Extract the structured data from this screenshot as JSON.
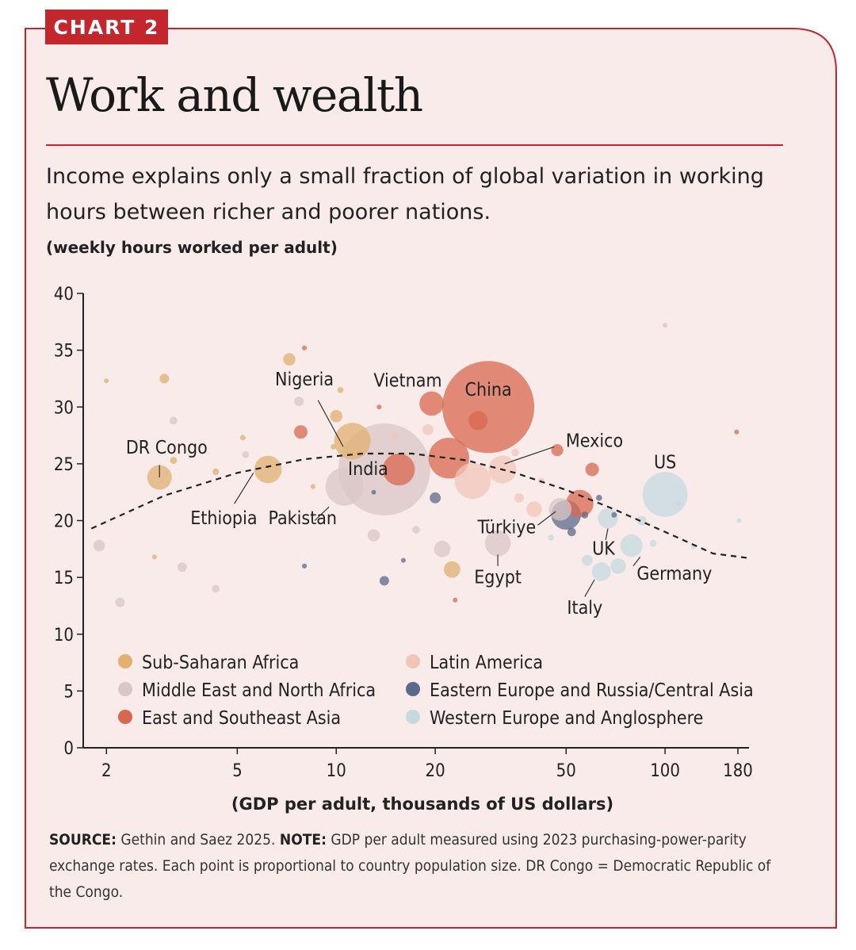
{
  "tag": "CHART 2",
  "title": "Work and wealth",
  "subtitle": "Income explains only a small fraction of global variation in working hours between richer and poorer nations.",
  "unit_label": "(weekly hours worked per adult)",
  "footnote": {
    "source_label": "SOURCE:",
    "source_text": " Gethin and Saez 2025. ",
    "note_label": "NOTE:",
    "note_text": " GDP per adult measured using 2023 purchasing-power-parity exchange rates. Each point is proportional to country population size. DR Congo = Democratic Republic of the Congo."
  },
  "colors": {
    "brand_red": "#c4262e",
    "panel_bg": "#f8ebea",
    "Sub-Saharan Africa": "#e2b06f",
    "Middle East and North Africa": "#d9c7c5",
    "East and Southeast Asia": "#d9674f",
    "Latin America": "#f1c6b8",
    "Eastern Europe and Russia/Central Asia": "#5c6a8a",
    "Western Europe and Anglosphere": "#c6d9df"
  },
  "chart_data": {
    "type": "scatter",
    "xlabel": "(GDP per adult, thousands of US dollars)",
    "ylabel": "(weekly hours worked per adult)",
    "x_scale": "log",
    "xlim": [
      1.7,
      180
    ],
    "ylim": [
      0,
      40
    ],
    "x_ticks": [
      2,
      5,
      10,
      20,
      50,
      100,
      180
    ],
    "y_ticks": [
      0,
      5,
      10,
      15,
      20,
      25,
      30,
      35,
      40
    ],
    "legend": [
      "Sub-Saharan Africa",
      "Middle East and North Africa",
      "East and Southeast Asia",
      "Latin America",
      "Eastern Europe and Russia/Central Asia",
      "Western Europe and Anglosphere"
    ],
    "legend_placement": "bottom",
    "trend_line": {
      "style": "dashed",
      "x": [
        1.8,
        3,
        5,
        8,
        12,
        17,
        25,
        35,
        50,
        70,
        100,
        140,
        180
      ],
      "y": [
        19.3,
        22.2,
        24.2,
        25.4,
        25.9,
        25.9,
        25.3,
        24.2,
        22.7,
        21.0,
        19.0,
        17.1,
        16.7
      ]
    },
    "points": [
      {
        "x": 29,
        "y": 30.0,
        "region": "East and Southeast Asia",
        "pop": 1400,
        "label": "China"
      },
      {
        "x": 14,
        "y": 24.5,
        "region": "Middle East and North Africa",
        "pop": 1400,
        "label": "India"
      },
      {
        "x": 19.5,
        "y": 30.3,
        "region": "East and Southeast Asia",
        "pop": 98,
        "label": "Vietnam"
      },
      {
        "x": 11.2,
        "y": 27.0,
        "region": "Sub-Saharan Africa",
        "pop": 220,
        "label": "Nigeria"
      },
      {
        "x": 6.2,
        "y": 24.5,
        "region": "Sub-Saharan Africa",
        "pop": 125,
        "label": "Ethiopia"
      },
      {
        "x": 2.9,
        "y": 23.8,
        "region": "Sub-Saharan Africa",
        "pop": 100,
        "label": "DR Congo"
      },
      {
        "x": 10.6,
        "y": 23.0,
        "region": "Middle East and North Africa",
        "pop": 240,
        "label": "Pakistan"
      },
      {
        "x": 32,
        "y": 24.5,
        "region": "Latin America",
        "pop": 128,
        "label": "Mexico"
      },
      {
        "x": 40,
        "y": 21.0,
        "region": "Latin America",
        "pop": 40
      },
      {
        "x": 48,
        "y": 21.0,
        "region": "Middle East and North Africa",
        "pop": 85,
        "label": "Türkiye"
      },
      {
        "x": 31,
        "y": 18.0,
        "region": "Middle East and North Africa",
        "pop": 110,
        "label": "Egypt"
      },
      {
        "x": 100,
        "y": 22.3,
        "region": "Western Europe and Anglosphere",
        "pop": 335,
        "label": "US"
      },
      {
        "x": 67,
        "y": 20.2,
        "region": "Western Europe and Anglosphere",
        "pop": 67,
        "label": "UK"
      },
      {
        "x": 79,
        "y": 17.8,
        "region": "Western Europe and Anglosphere",
        "pop": 84,
        "label": "Germany"
      },
      {
        "x": 64,
        "y": 15.5,
        "region": "Western Europe and Anglosphere",
        "pop": 59,
        "label": "Italy"
      },
      {
        "x": 22,
        "y": 25.5,
        "region": "East and Southeast Asia",
        "pop": 275
      },
      {
        "x": 15.5,
        "y": 24.5,
        "region": "East and Southeast Asia",
        "pop": 170
      },
      {
        "x": 27,
        "y": 28.8,
        "region": "East and Southeast Asia",
        "pop": 60
      },
      {
        "x": 26,
        "y": 23.5,
        "region": "Latin America",
        "pop": 215
      },
      {
        "x": 55,
        "y": 21.5,
        "region": "East and Southeast Asia",
        "pop": 125
      },
      {
        "x": 50,
        "y": 20.5,
        "region": "Eastern Europe and Russia/Central Asia",
        "pop": 145
      },
      {
        "x": 60,
        "y": 24.5,
        "region": "East and Southeast Asia",
        "pop": 30
      },
      {
        "x": 47,
        "y": 26.2,
        "region": "East and Southeast Asia",
        "pop": 24
      },
      {
        "x": 7.8,
        "y": 27.8,
        "region": "East and Southeast Asia",
        "pop": 30
      },
      {
        "x": 20,
        "y": 22.0,
        "region": "Eastern Europe and Russia/Central Asia",
        "pop": 20
      },
      {
        "x": 14,
        "y": 14.7,
        "region": "Eastern Europe and Russia/Central Asia",
        "pop": 15
      },
      {
        "x": 21,
        "y": 17.5,
        "region": "Middle East and North Africa",
        "pop": 45
      },
      {
        "x": 22.5,
        "y": 15.7,
        "region": "Sub-Saharan Africa",
        "pop": 45
      },
      {
        "x": 7.2,
        "y": 34.2,
        "region": "Sub-Saharan Africa",
        "pop": 25
      },
      {
        "x": 10,
        "y": 29.2,
        "region": "Sub-Saharan Africa",
        "pop": 25
      },
      {
        "x": 3.0,
        "y": 32.5,
        "region": "Sub-Saharan Africa",
        "pop": 15
      },
      {
        "x": 7.7,
        "y": 30.5,
        "region": "Middle East and North Africa",
        "pop": 15
      },
      {
        "x": 1.9,
        "y": 17.8,
        "region": "Middle East and North Africa",
        "pop": 22
      },
      {
        "x": 3.4,
        "y": 15.9,
        "region": "Middle East and North Africa",
        "pop": 15
      },
      {
        "x": 2.2,
        "y": 12.8,
        "region": "Middle East and North Africa",
        "pop": 15
      },
      {
        "x": 4.3,
        "y": 14.0,
        "region": "Middle East and North Africa",
        "pop": 10
      },
      {
        "x": 13,
        "y": 18.7,
        "region": "Middle East and North Africa",
        "pop": 25
      },
      {
        "x": 17.5,
        "y": 19.2,
        "region": "Middle East and North Africa",
        "pop": 10
      },
      {
        "x": 3.2,
        "y": 28.8,
        "region": "Middle East and North Africa",
        "pop": 10
      },
      {
        "x": 5.3,
        "y": 25.8,
        "region": "Middle East and North Africa",
        "pop": 8
      },
      {
        "x": 72,
        "y": 16.0,
        "region": "Western Europe and Anglosphere",
        "pop": 40
      },
      {
        "x": 58,
        "y": 16.5,
        "region": "Western Europe and Anglosphere",
        "pop": 20
      },
      {
        "x": 85,
        "y": 20.0,
        "region": "Western Europe and Anglosphere",
        "pop": 15
      },
      {
        "x": 92,
        "y": 18.0,
        "region": "Western Europe and Anglosphere",
        "pop": 8
      },
      {
        "x": 110,
        "y": 21.5,
        "region": "Western Europe and Anglosphere",
        "pop": 5
      },
      {
        "x": 45,
        "y": 18.5,
        "region": "Western Europe and Anglosphere",
        "pop": 6
      },
      {
        "x": 52,
        "y": 19.0,
        "region": "Eastern Europe and Russia/Central Asia",
        "pop": 12
      },
      {
        "x": 57,
        "y": 20.5,
        "region": "Eastern Europe and Russia/Central Asia",
        "pop": 8
      },
      {
        "x": 63,
        "y": 22.0,
        "region": "Eastern Europe and Russia/Central Asia",
        "pop": 6
      },
      {
        "x": 70,
        "y": 20.5,
        "region": "Eastern Europe and Russia/Central Asia",
        "pop": 5
      },
      {
        "x": 8,
        "y": 16.0,
        "region": "Eastern Europe and Russia/Central Asia",
        "pop": 4
      },
      {
        "x": 36,
        "y": 22.0,
        "region": "Latin America",
        "pop": 15
      },
      {
        "x": 19,
        "y": 28.0,
        "region": "Latin America",
        "pop": 20
      },
      {
        "x": 35,
        "y": 26.0,
        "region": "Latin America",
        "pop": 10
      },
      {
        "x": 15,
        "y": 27.5,
        "region": "Latin America",
        "pop": 8
      },
      {
        "x": 42,
        "y": 23.5,
        "region": "Latin America",
        "pop": 6
      },
      {
        "x": 100,
        "y": 37.2,
        "region": "Middle East and North Africa",
        "pop": 3
      },
      {
        "x": 2.0,
        "y": 32.3,
        "region": "Sub-Saharan Africa",
        "pop": 3
      },
      {
        "x": 2.8,
        "y": 16.8,
        "region": "Sub-Saharan Africa",
        "pop": 4
      },
      {
        "x": 5.2,
        "y": 27.3,
        "region": "Sub-Saharan Africa",
        "pop": 5
      },
      {
        "x": 4.3,
        "y": 24.3,
        "region": "Sub-Saharan Africa",
        "pop": 7
      },
      {
        "x": 9.8,
        "y": 26.5,
        "region": "Sub-Saharan Africa",
        "pop": 5
      },
      {
        "x": 3.2,
        "y": 25.3,
        "region": "Sub-Saharan Africa",
        "pop": 8
      },
      {
        "x": 8.5,
        "y": 23.0,
        "region": "Sub-Saharan Africa",
        "pop": 4
      },
      {
        "x": 10.3,
        "y": 31.5,
        "region": "Sub-Saharan Africa",
        "pop": 6
      },
      {
        "x": 8.0,
        "y": 35.2,
        "region": "East and Southeast Asia",
        "pop": 3
      },
      {
        "x": 13.5,
        "y": 30.0,
        "region": "East and Southeast Asia",
        "pop": 2
      },
      {
        "x": 165,
        "y": 27.8,
        "region": "East and Southeast Asia",
        "pop": 2
      },
      {
        "x": 23,
        "y": 13.0,
        "region": "East and Southeast Asia",
        "pop": 1
      },
      {
        "x": 16,
        "y": 16.5,
        "region": "Eastern Europe and Russia/Central Asia",
        "pop": 2
      },
      {
        "x": 13,
        "y": 22.5,
        "region": "Eastern Europe and Russia/Central Asia",
        "pop": 2
      },
      {
        "x": 168,
        "y": 20.0,
        "region": "Western Europe and Anglosphere",
        "pop": 2
      },
      {
        "x": 122,
        "y": 17.7,
        "region": "Western Europe and Anglosphere",
        "pop": 2
      }
    ],
    "annotations": [
      {
        "text": "China",
        "x": 29,
        "y": 30.0,
        "lx": 29,
        "ly": 31.0,
        "anchor": "middle"
      },
      {
        "text": "Vietnam",
        "x": 19.5,
        "y": 30.3,
        "lx": 16.5,
        "ly": 31.8,
        "anchor": "middle"
      },
      {
        "text": "Nigeria",
        "x": 11.2,
        "y": 27.0,
        "lx": 8.0,
        "ly": 31.9,
        "anchor": "middle",
        "line": [
          10.5,
          26.5,
          8.8,
          30.6
        ]
      },
      {
        "text": "DR Congo",
        "x": 2.9,
        "y": 23.8,
        "lx": 3.05,
        "ly": 25.9,
        "anchor": "middle",
        "line": [
          2.9,
          23.8,
          2.9,
          24.9
        ]
      },
      {
        "text": "India",
        "x": 14,
        "y": 24.5,
        "lx": 12.5,
        "ly": 24.0,
        "anchor": "middle"
      },
      {
        "text": "Mexico",
        "x": 32,
        "y": 24.5,
        "lx": 61,
        "ly": 26.5,
        "anchor": "middle",
        "line": [
          32.5,
          25.0,
          46,
          26.5
        ]
      },
      {
        "text": "Ethiopia",
        "x": 6.2,
        "y": 24.5,
        "lx": 4.55,
        "ly": 19.7,
        "anchor": "middle",
        "line": [
          5.6,
          24.2,
          4.9,
          21.5
        ]
      },
      {
        "text": "Pakistan",
        "x": 10.6,
        "y": 23.0,
        "lx": 7.9,
        "ly": 19.7,
        "anchor": "middle",
        "line": [
          9.5,
          21.2,
          8.6,
          20.0
        ]
      },
      {
        "text": "Türkiye",
        "x": 48,
        "y": 21.0,
        "lx": 33,
        "ly": 18.9,
        "anchor": "middle",
        "line": [
          41,
          19.6,
          46.5,
          20.8
        ]
      },
      {
        "text": "Egypt",
        "x": 31,
        "y": 18.0,
        "lx": 31,
        "ly": 14.5,
        "anchor": "middle",
        "line": [
          31,
          16.0,
          31,
          17.0
        ]
      },
      {
        "text": "US",
        "x": 100,
        "y": 22.3,
        "lx": 100,
        "ly": 24.6,
        "anchor": "middle"
      },
      {
        "text": "UK",
        "x": 67,
        "y": 20.2,
        "lx": 65,
        "ly": 17.0,
        "anchor": "middle",
        "line": [
          66,
          18.3,
          67,
          19.3
        ]
      },
      {
        "text": "Germany",
        "x": 79,
        "y": 17.8,
        "lx": 82,
        "ly": 14.8,
        "anchor": "start",
        "line": [
          80,
          16.0,
          84,
          16.8
        ]
      },
      {
        "text": "Italy",
        "x": 64,
        "y": 15.5,
        "lx": 57,
        "ly": 11.8,
        "anchor": "middle",
        "line": [
          57,
          13.3,
          61,
          14.8
        ]
      }
    ]
  }
}
